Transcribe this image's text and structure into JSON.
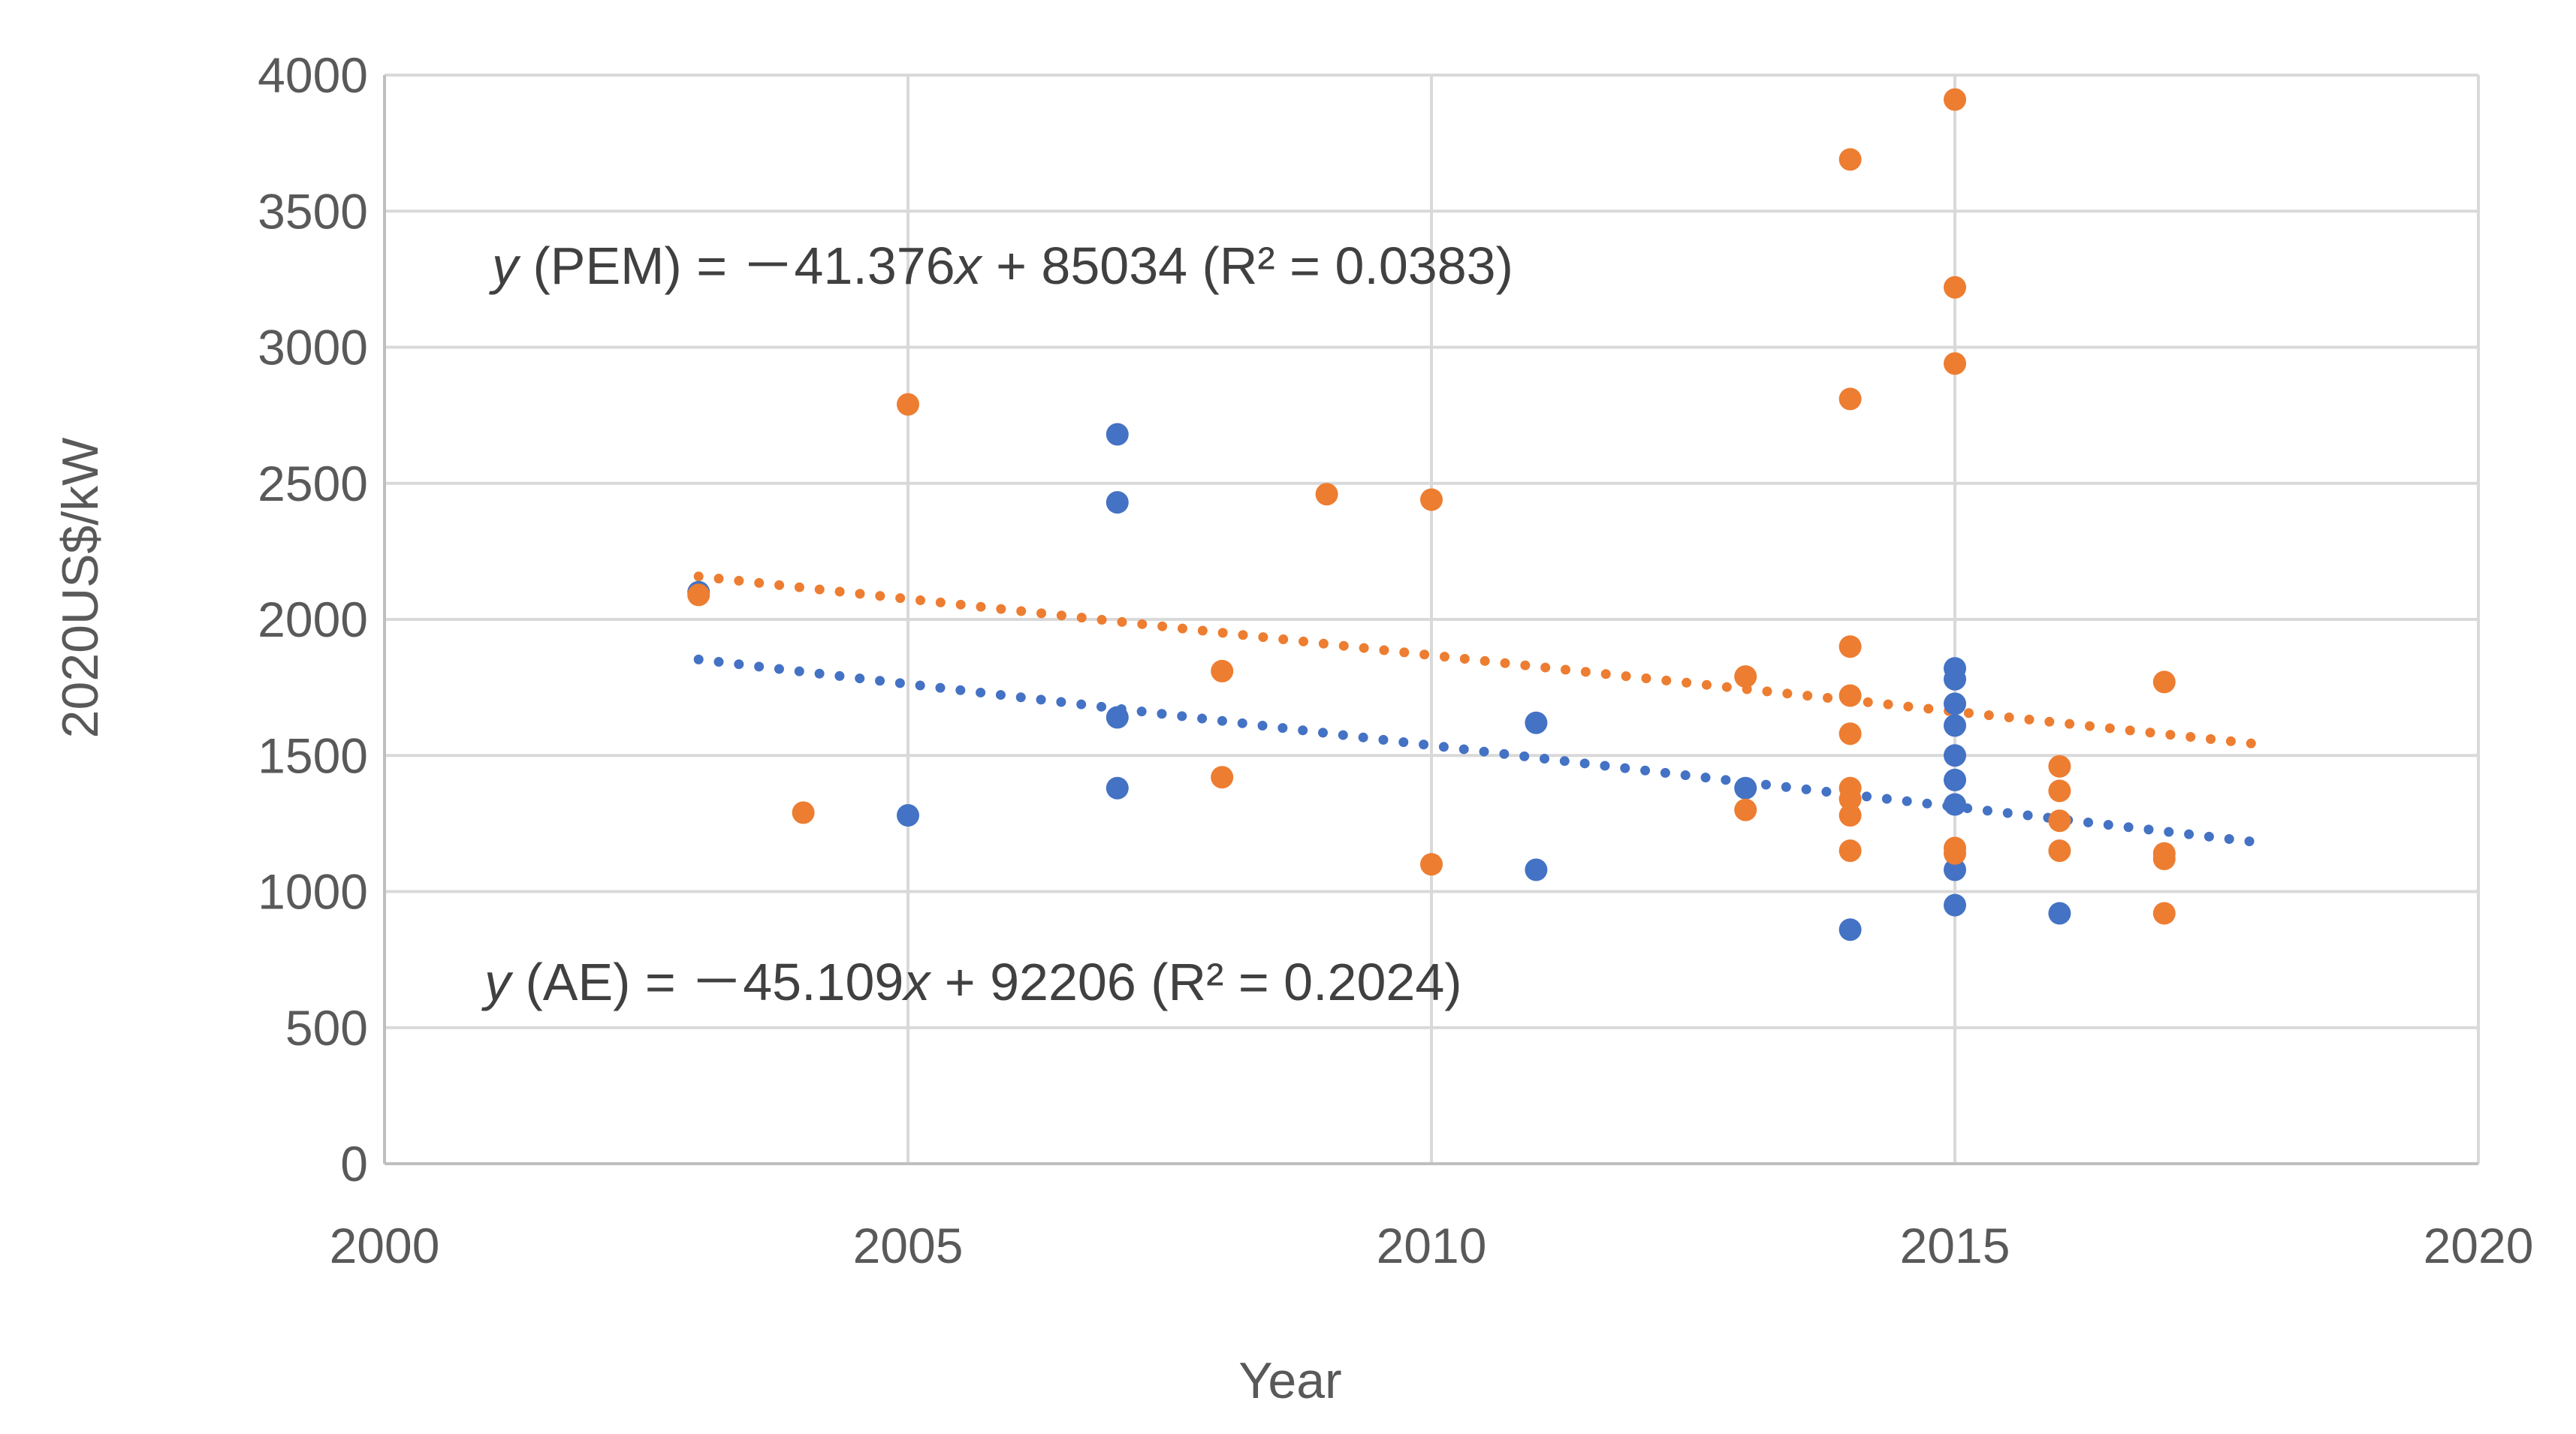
{
  "chart_data": {
    "type": "scatter",
    "title": "",
    "xlabel": "Year",
    "ylabel": "2020US$/kW",
    "xlim": [
      2000,
      2020
    ],
    "ylim": [
      0,
      4000
    ],
    "xticks": [
      "2000",
      "2005",
      "2010",
      "2015",
      "2020"
    ],
    "yticks": [
      "0",
      "500",
      "1000",
      "1500",
      "2000",
      "2500",
      "3000",
      "3500",
      "4000"
    ],
    "grid": true,
    "series": [
      {
        "name": "AE",
        "color": "#4472C4",
        "points": [
          [
            2003,
            2100
          ],
          [
            2005,
            1280
          ],
          [
            2007,
            2680
          ],
          [
            2007,
            2430
          ],
          [
            2007,
            1640
          ],
          [
            2007,
            1380
          ],
          [
            2011,
            1620
          ],
          [
            2011,
            1080
          ],
          [
            2013,
            1380
          ],
          [
            2014,
            860
          ],
          [
            2015,
            1820
          ],
          [
            2015,
            1780
          ],
          [
            2015,
            1690
          ],
          [
            2015,
            1610
          ],
          [
            2015,
            1500
          ],
          [
            2015,
            1410
          ],
          [
            2015,
            1320
          ],
          [
            2015,
            1080
          ],
          [
            2015,
            950
          ],
          [
            2016,
            920
          ]
        ],
        "trendline": {
          "slope": -45.109,
          "intercept": 92206,
          "x_range": [
            2003,
            2018
          ]
        }
      },
      {
        "name": "PEM",
        "color": "#ED7D31",
        "points": [
          [
            2003,
            2090
          ],
          [
            2004,
            1290
          ],
          [
            2005,
            2790
          ],
          [
            2008,
            1810
          ],
          [
            2008,
            1420
          ],
          [
            2009,
            2460
          ],
          [
            2010,
            2440
          ],
          [
            2010,
            1100
          ],
          [
            2013,
            1790
          ],
          [
            2013,
            1300
          ],
          [
            2014,
            3690
          ],
          [
            2014,
            2810
          ],
          [
            2014,
            1900
          ],
          [
            2014,
            1720
          ],
          [
            2014,
            1580
          ],
          [
            2014,
            1380
          ],
          [
            2014,
            1340
          ],
          [
            2014,
            1280
          ],
          [
            2014,
            1150
          ],
          [
            2015,
            3910
          ],
          [
            2015,
            3220
          ],
          [
            2015,
            2940
          ],
          [
            2015,
            1160
          ],
          [
            2015,
            1140
          ],
          [
            2016,
            1460
          ],
          [
            2016,
            1370
          ],
          [
            2016,
            1260
          ],
          [
            2016,
            1150
          ],
          [
            2017,
            1770
          ],
          [
            2017,
            1140
          ],
          [
            2017,
            1120
          ],
          [
            2017,
            920
          ]
        ],
        "trendline": {
          "slope": -41.376,
          "intercept": 85034,
          "x_range": [
            2003,
            2018
          ]
        }
      }
    ],
    "annotations": {
      "pem": {
        "y": "y",
        "label": " (PEM) = －41.376",
        "x": "x",
        "rest": " + 85034 (R² = 0.0383)"
      },
      "ae": {
        "y": "y",
        "label": " (AE) = －45.109",
        "x": "x",
        "rest": " + 92206 (R² = 0.2024)"
      }
    }
  }
}
